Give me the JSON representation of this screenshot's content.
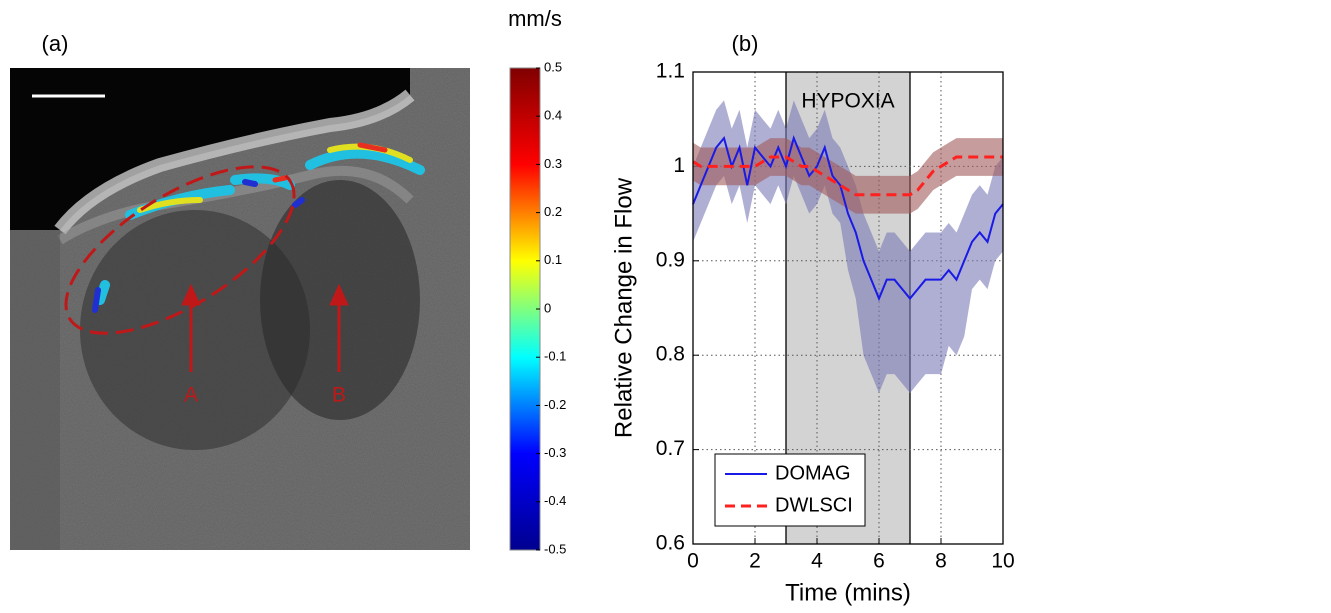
{
  "chart_data": [
    {
      "type": "image",
      "panel_label": "(a)",
      "annotations": [
        "A",
        "B"
      ],
      "colorbar": {
        "label": "mm/s",
        "lim": [
          -0.5,
          0.5
        ],
        "ticks": [
          0.5,
          0.4,
          0.3,
          0.2,
          0.1,
          0,
          -0.1,
          -0.2,
          -0.3,
          -0.4,
          -0.5
        ],
        "colors": [
          "#00008f",
          "#0000ff",
          "#00ffff",
          "#ffff00",
          "#ff0000",
          "#800000"
        ]
      }
    },
    {
      "type": "line",
      "panel_label": "(b)",
      "xlabel": "Time (mins)",
      "ylabel": "Relative Change in Flow",
      "xlim": [
        0,
        10
      ],
      "ylim": [
        0.6,
        1.1
      ],
      "xticks": [
        0,
        2,
        4,
        6,
        8,
        10
      ],
      "yticks": [
        0.6,
        0.7,
        0.8,
        0.9,
        1,
        1.1
      ],
      "grid": true,
      "legend": "lower left",
      "shaded_region": {
        "label": "HYPOXIA",
        "range": [
          3,
          7
        ],
        "color": "#d3d3d3"
      },
      "x": [
        0,
        0.25,
        0.5,
        0.75,
        1,
        1.25,
        1.5,
        1.75,
        2,
        2.25,
        2.5,
        2.75,
        3,
        3.25,
        3.5,
        3.75,
        4,
        4.25,
        4.5,
        4.75,
        5,
        5.25,
        5.5,
        5.75,
        6,
        6.25,
        6.5,
        6.75,
        7,
        7.25,
        7.5,
        7.75,
        8,
        8.25,
        8.5,
        8.75,
        9,
        9.25,
        9.5,
        9.75,
        10
      ],
      "series": [
        {
          "name": "DOMAG",
          "color": "#1a1ae6",
          "dash": false,
          "band_color": "#7a7ab8",
          "values": [
            0.96,
            0.98,
            1.0,
            1.02,
            1.03,
            1.0,
            1.02,
            0.98,
            1.02,
            1.01,
            1.0,
            1.02,
            1.0,
            1.03,
            1.01,
            0.99,
            1.0,
            1.02,
            0.99,
            0.98,
            0.95,
            0.93,
            0.9,
            0.88,
            0.86,
            0.88,
            0.88,
            0.87,
            0.86,
            0.87,
            0.88,
            0.88,
            0.88,
            0.89,
            0.88,
            0.9,
            0.92,
            0.93,
            0.92,
            0.95,
            0.96
          ],
          "lower": [
            0.92,
            0.94,
            0.96,
            0.98,
            0.99,
            0.96,
            0.98,
            0.94,
            0.98,
            0.97,
            0.96,
            0.98,
            0.96,
            0.99,
            0.97,
            0.95,
            0.96,
            0.98,
            0.95,
            0.94,
            0.89,
            0.86,
            0.8,
            0.78,
            0.76,
            0.78,
            0.78,
            0.77,
            0.76,
            0.77,
            0.78,
            0.78,
            0.78,
            0.81,
            0.8,
            0.82,
            0.87,
            0.88,
            0.87,
            0.9,
            0.91
          ],
          "upper": [
            1.0,
            1.02,
            1.04,
            1.06,
            1.07,
            1.04,
            1.06,
            1.02,
            1.06,
            1.05,
            1.04,
            1.06,
            1.04,
            1.07,
            1.05,
            1.03,
            1.04,
            1.06,
            1.03,
            1.02,
            1.0,
            0.98,
            0.95,
            0.93,
            0.91,
            0.93,
            0.93,
            0.92,
            0.91,
            0.92,
            0.93,
            0.93,
            0.93,
            0.94,
            0.93,
            0.95,
            0.97,
            0.98,
            0.97,
            1.0,
            1.01
          ]
        },
        {
          "name": "DWLSCI",
          "color": "#ff2020",
          "dash": true,
          "band_color": "#a05a5a",
          "values": [
            1.005,
            1.0,
            1.0,
            1.0,
            1.0,
            1.0,
            1.0,
            1.0,
            1.0,
            1.005,
            1.01,
            1.01,
            1.01,
            1.005,
            1.0,
            1.0,
            0.995,
            0.99,
            0.985,
            0.98,
            0.975,
            0.97,
            0.97,
            0.97,
            0.97,
            0.97,
            0.97,
            0.97,
            0.97,
            0.975,
            0.985,
            0.995,
            1.0,
            1.005,
            1.01,
            1.01,
            1.01,
            1.01,
            1.01,
            1.01,
            1.01
          ],
          "lower": [
            0.985,
            0.98,
            0.98,
            0.98,
            0.98,
            0.98,
            0.98,
            0.98,
            0.98,
            0.985,
            0.99,
            0.99,
            0.99,
            0.985,
            0.98,
            0.98,
            0.975,
            0.97,
            0.965,
            0.96,
            0.955,
            0.95,
            0.95,
            0.95,
            0.95,
            0.95,
            0.95,
            0.95,
            0.95,
            0.955,
            0.965,
            0.975,
            0.98,
            0.985,
            0.99,
            0.99,
            0.99,
            0.99,
            0.99,
            0.99,
            0.99
          ],
          "upper": [
            1.025,
            1.02,
            1.02,
            1.02,
            1.02,
            1.02,
            1.02,
            1.02,
            1.02,
            1.025,
            1.03,
            1.03,
            1.03,
            1.025,
            1.02,
            1.02,
            1.015,
            1.01,
            1.005,
            1.0,
            0.995,
            0.99,
            0.99,
            0.99,
            0.99,
            0.99,
            0.99,
            0.99,
            0.99,
            0.995,
            1.005,
            1.015,
            1.02,
            1.025,
            1.03,
            1.03,
            1.03,
            1.03,
            1.03,
            1.03,
            1.03
          ]
        }
      ]
    }
  ]
}
